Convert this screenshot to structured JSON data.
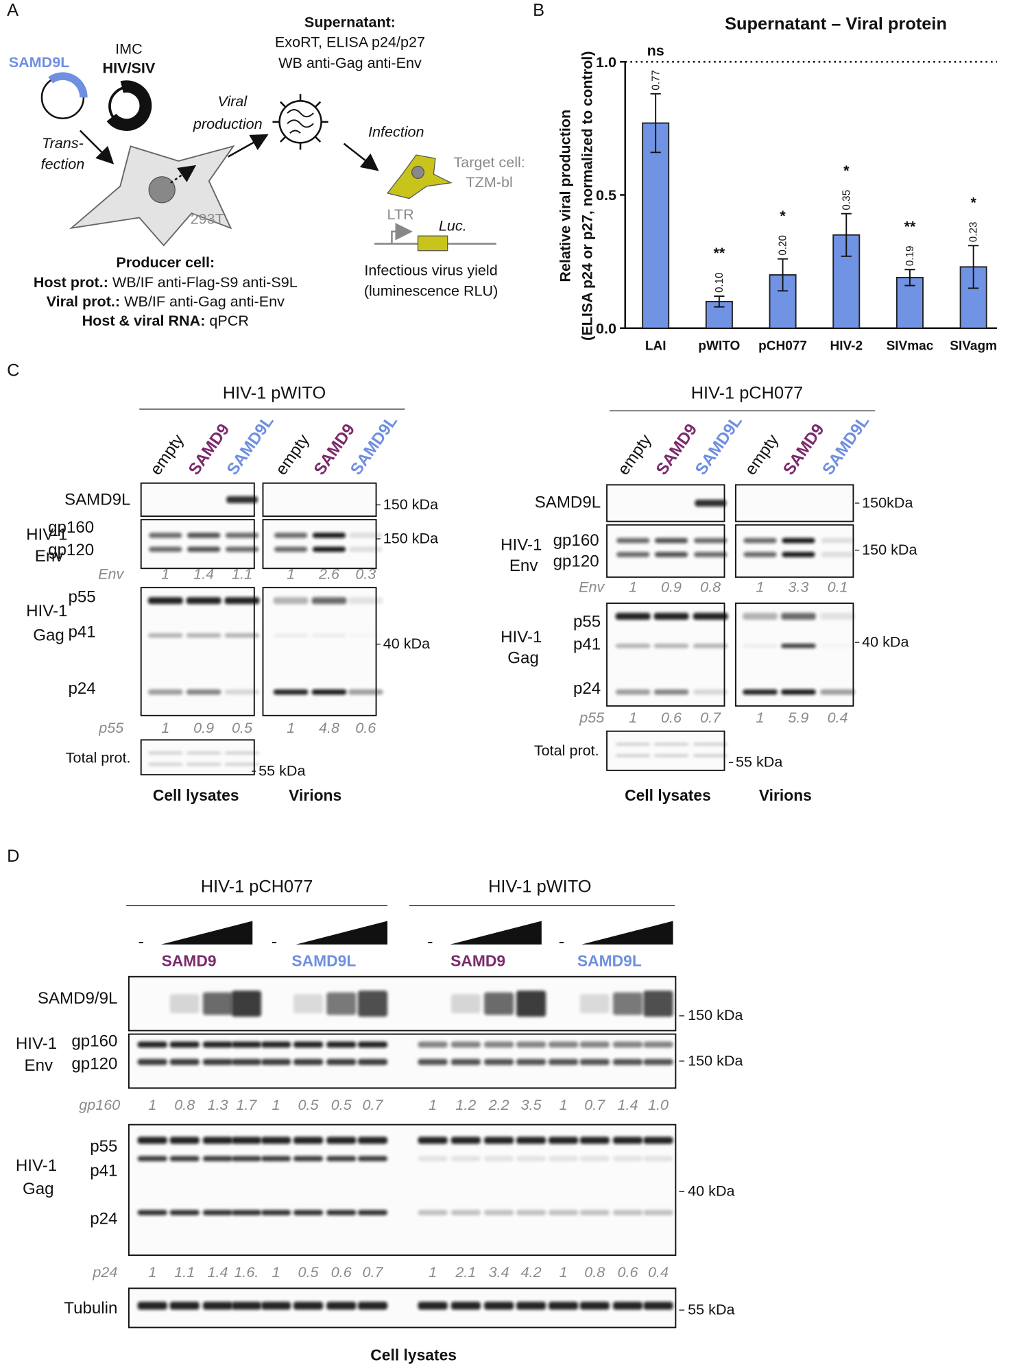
{
  "panel_labels": [
    "A",
    "B",
    "C",
    "D"
  ],
  "panel_a": {
    "plasmid": "SAMD9L",
    "imc": "IMC",
    "imc_virus": "HIV/SIV",
    "transfection": [
      "Trans-",
      "fection"
    ],
    "viral_production": [
      "Viral",
      "production"
    ],
    "supernatant_title": "Supernatant:",
    "supernatant_lines": [
      "ExoRT, ELISA p24/p27",
      "WB anti-Gag anti-Env"
    ],
    "infection": "Infection",
    "target_cell": [
      "Target cell:",
      "TZM-bl"
    ],
    "cell_line": "293T",
    "ltr": "LTR",
    "luc": "Luc.",
    "yield": [
      "Infectious virus yield",
      "(luminescence RLU)"
    ],
    "producer_title": "Producer cell:",
    "producer_lines": [
      [
        "Host prot.:",
        "WB/IF anti-Flag-S9 anti-S9L"
      ],
      [
        "Viral prot.:",
        "WB/IF anti-Gag anti-Env"
      ],
      [
        "Host & viral RNA:",
        "qPCR"
      ]
    ]
  },
  "chart_data": {
    "type": "bar",
    "title": "Supernatant – Viral protein",
    "y_label": [
      "Relative viral production",
      "(ELISA p24 or p27, normalized to control)"
    ],
    "categories": [
      "LAI",
      "pWITO",
      "pCH077",
      "HIV-2",
      "SIVmac",
      "SIVagm"
    ],
    "values": [
      0.77,
      0.1,
      0.2,
      0.35,
      0.19,
      0.23
    ],
    "value_labels": [
      "0.77",
      "0.10",
      "0.20",
      "0.35",
      "0.19",
      "0.23"
    ],
    "errors": [
      0.11,
      0.02,
      0.06,
      0.08,
      0.03,
      0.08
    ],
    "significance": [
      "ns",
      "**",
      "*",
      "*",
      "**",
      "*"
    ],
    "color": "#7193e3",
    "ylim": [
      0,
      1.0
    ],
    "yticks": [
      {
        "value": 0,
        "label": "0.0"
      },
      {
        "value": 0.5,
        "label": "0.5"
      },
      {
        "value": 1.0,
        "label": "1.0"
      }
    ],
    "reference_line": 1.0
  },
  "panel_c": {
    "blots": [
      {
        "title": "HIV-1 pWITO",
        "lanes": [
          "empty",
          "SAMD9",
          "SAMD9L",
          "empty",
          "SAMD9",
          "SAMD9L"
        ],
        "host_row": "SAMD9L",
        "env_group": [
          "HIV-1",
          "Env"
        ],
        "env_bands": [
          "gp160",
          "gp120"
        ],
        "gag_group": [
          "HIV-1",
          "Gag"
        ],
        "gag_bands": [
          "p55",
          "p41",
          "p24"
        ],
        "total": "Total prot.",
        "markers": [
          "150 kDa",
          "150 kDa",
          "40 kDa",
          "55 kDa"
        ],
        "env_quant_label": "Env",
        "env_quant": [
          "1",
          "1.4",
          "1.1",
          "1",
          "2.6",
          "0.3"
        ],
        "p55_quant_label": "p55",
        "p55_quant": [
          "1",
          "0.9",
          "0.5",
          "1",
          "4.8",
          "0.6"
        ],
        "groups": [
          "Cell lysates",
          "Virions"
        ]
      },
      {
        "title": "HIV-1 pCH077",
        "lanes": [
          "empty",
          "SAMD9",
          "SAMD9L",
          "empty",
          "SAMD9",
          "SAMD9L"
        ],
        "host_row": "SAMD9L",
        "env_group": [
          "HIV-1",
          "Env"
        ],
        "env_bands": [
          "gp160",
          "gp120"
        ],
        "gag_group": [
          "HIV-1",
          "Gag"
        ],
        "gag_bands": [
          "p55",
          "p41",
          "p24"
        ],
        "total": "Total prot.",
        "markers": [
          "150kDa",
          "150 kDa",
          "40 kDa",
          "55 kDa"
        ],
        "env_quant_label": "Env",
        "env_quant": [
          "1",
          "0.9",
          "0.8",
          "1",
          "3.3",
          "0.1"
        ],
        "p55_quant_label": "p55",
        "p55_quant": [
          "1",
          "0.6",
          "0.7",
          "1",
          "5.9",
          "0.4"
        ],
        "groups": [
          "Cell lysates",
          "Virions"
        ]
      }
    ]
  },
  "panel_d": {
    "titles": [
      "HIV-1 pCH077",
      "HIV-1 pWITO"
    ],
    "dashes": [
      "-",
      "-",
      "-",
      "-"
    ],
    "treatments": [
      "SAMD9",
      "SAMD9L",
      "SAMD9",
      "SAMD9L"
    ],
    "host_row": "SAMD9/9L",
    "env_group": [
      "HIV-1",
      "Env"
    ],
    "env_bands": [
      "gp160",
      "gp120"
    ],
    "gag_group": [
      "HIV-1",
      "Gag"
    ],
    "gag_bands": [
      "p55",
      "p41",
      "p24"
    ],
    "loading": "Tubulin",
    "markers": [
      "150 kDa",
      "150 kDa",
      "40 kDa",
      "55 kDa"
    ],
    "gp160_quant_label": "gp160",
    "gp160_quant": [
      "1",
      "0.8",
      "1.3",
      "1.7",
      "1",
      "0.5",
      "0.5",
      "0.7",
      "1",
      "1.2",
      "2.2",
      "3.5",
      "1",
      "0.7",
      "1.4",
      "1.0"
    ],
    "p24_quant_label": "p24",
    "p24_quant": [
      "1",
      "1.1",
      "1.4",
      "1.6.",
      "1",
      "0.5",
      "0.6",
      "0.7",
      "1",
      "2.1",
      "3.4",
      "4.2",
      "1",
      "0.8",
      "0.6",
      "0.4"
    ],
    "footer": "Cell lysates"
  }
}
